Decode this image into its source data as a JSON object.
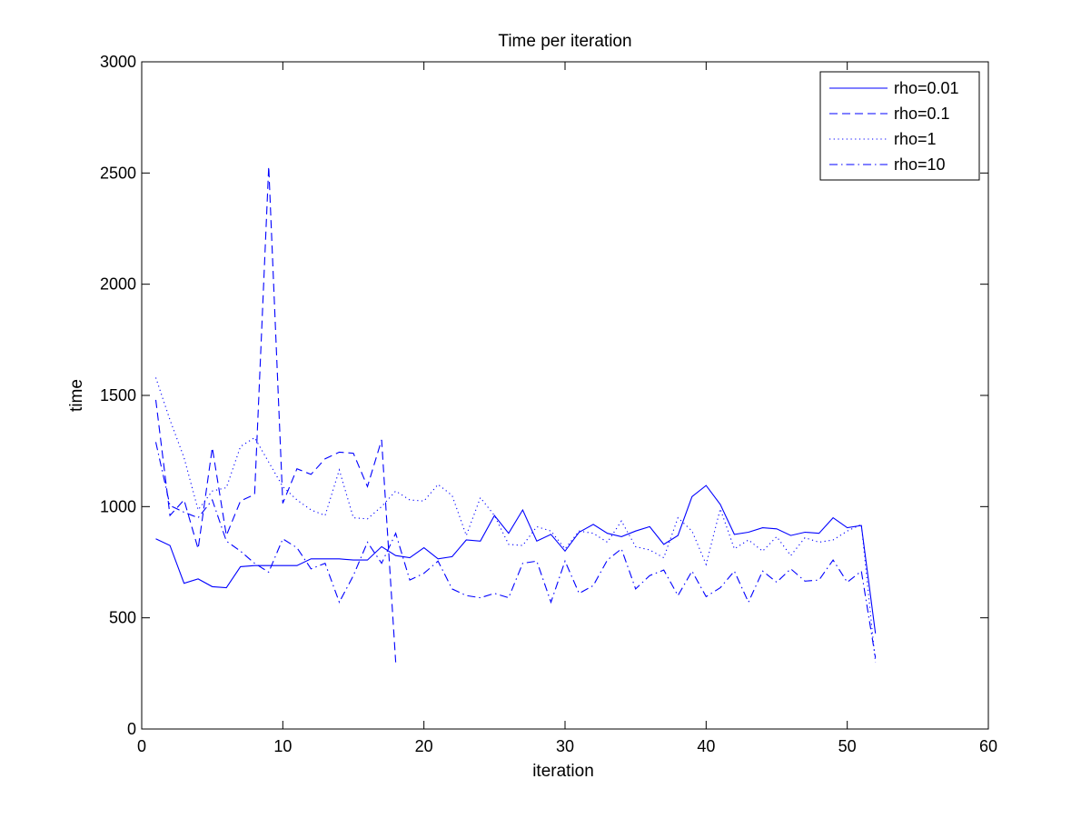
{
  "chart_data": {
    "type": "line",
    "title": "Time per iteration",
    "xlabel": "iteration",
    "ylabel": "time",
    "xlim": [
      0,
      60
    ],
    "ylim": [
      0,
      3000
    ],
    "xticks": [
      0,
      10,
      20,
      30,
      40,
      50,
      60
    ],
    "yticks": [
      0,
      500,
      1000,
      1500,
      2000,
      2500,
      3000
    ],
    "grid": false,
    "legend_position": "top-right",
    "line_color": "#0000ff",
    "series": [
      {
        "name": "rho=0.01",
        "style": "solid",
        "x": [
          1,
          2,
          3,
          4,
          5,
          6,
          7,
          8,
          9,
          10,
          11,
          12,
          13,
          14,
          15,
          16,
          17,
          18,
          19,
          20,
          21,
          22,
          23,
          24,
          25,
          26,
          27,
          28,
          29,
          30,
          31,
          32,
          33,
          34,
          35,
          36,
          37,
          38,
          39,
          40,
          41,
          42,
          43,
          44,
          45,
          46,
          47,
          48,
          49,
          50,
          51,
          52
        ],
        "values": [
          855,
          825,
          655,
          675,
          640,
          635,
          730,
          735,
          735,
          735,
          735,
          765,
          765,
          765,
          760,
          760,
          820,
          780,
          770,
          815,
          765,
          775,
          850,
          845,
          960,
          880,
          985,
          845,
          875,
          800,
          885,
          920,
          880,
          865,
          890,
          910,
          830,
          870,
          1045,
          1095,
          1010,
          875,
          885,
          905,
          900,
          870,
          885,
          880,
          950,
          905,
          915,
          430
        ]
      },
      {
        "name": "rho=0.1",
        "style": "dashed",
        "x": [
          1,
          2,
          3,
          4,
          5,
          6,
          7,
          8,
          9,
          10,
          11,
          12,
          13,
          14,
          15,
          16,
          17,
          18
        ],
        "values": [
          1480,
          960,
          1030,
          810,
          1265,
          870,
          1025,
          1055,
          2530,
          1015,
          1170,
          1145,
          1215,
          1245,
          1240,
          1090,
          1300,
          300
        ]
      },
      {
        "name": "rho=1",
        "style": "dotted",
        "x": [
          1,
          2,
          3,
          4,
          5,
          6,
          7,
          8,
          9,
          10,
          11,
          12,
          13,
          14,
          15,
          16,
          17,
          18,
          19,
          20,
          21,
          22,
          23,
          24,
          25,
          26,
          27,
          28,
          29,
          30,
          31,
          32,
          33,
          34,
          35,
          36,
          37,
          38,
          39,
          40,
          41,
          42,
          43,
          44,
          45,
          46,
          47,
          48,
          49,
          50,
          51,
          52
        ],
        "values": [
          1580,
          1390,
          1220,
          985,
          1070,
          1085,
          1270,
          1310,
          1200,
          1090,
          1030,
          985,
          960,
          1165,
          950,
          945,
          1000,
          1070,
          1030,
          1025,
          1100,
          1050,
          870,
          1040,
          960,
          830,
          825,
          910,
          890,
          810,
          890,
          880,
          840,
          935,
          820,
          805,
          770,
          950,
          890,
          740,
          990,
          810,
          850,
          800,
          865,
          780,
          860,
          840,
          850,
          890,
          920,
          300
        ]
      },
      {
        "name": "rho=10",
        "style": "dashdot",
        "x": [
          1,
          2,
          3,
          4,
          5,
          6,
          7,
          8,
          9,
          10,
          11,
          12,
          13,
          14,
          15,
          16,
          17,
          18,
          19,
          20,
          21,
          22,
          23,
          24,
          25,
          26,
          27,
          28,
          29,
          30,
          31,
          32,
          33,
          34,
          35,
          36,
          37,
          38,
          39,
          40,
          41,
          42,
          43,
          44,
          45,
          46,
          47,
          48,
          49,
          50,
          51,
          52
        ],
        "values": [
          1290,
          1005,
          975,
          950,
          1030,
          845,
          800,
          745,
          705,
          855,
          815,
          720,
          745,
          570,
          690,
          840,
          745,
          880,
          670,
          700,
          755,
          630,
          600,
          590,
          610,
          590,
          745,
          755,
          570,
          755,
          610,
          645,
          760,
          810,
          630,
          690,
          715,
          600,
          710,
          595,
          635,
          710,
          570,
          710,
          660,
          720,
          665,
          670,
          760,
          660,
          710,
          320
        ]
      }
    ]
  }
}
